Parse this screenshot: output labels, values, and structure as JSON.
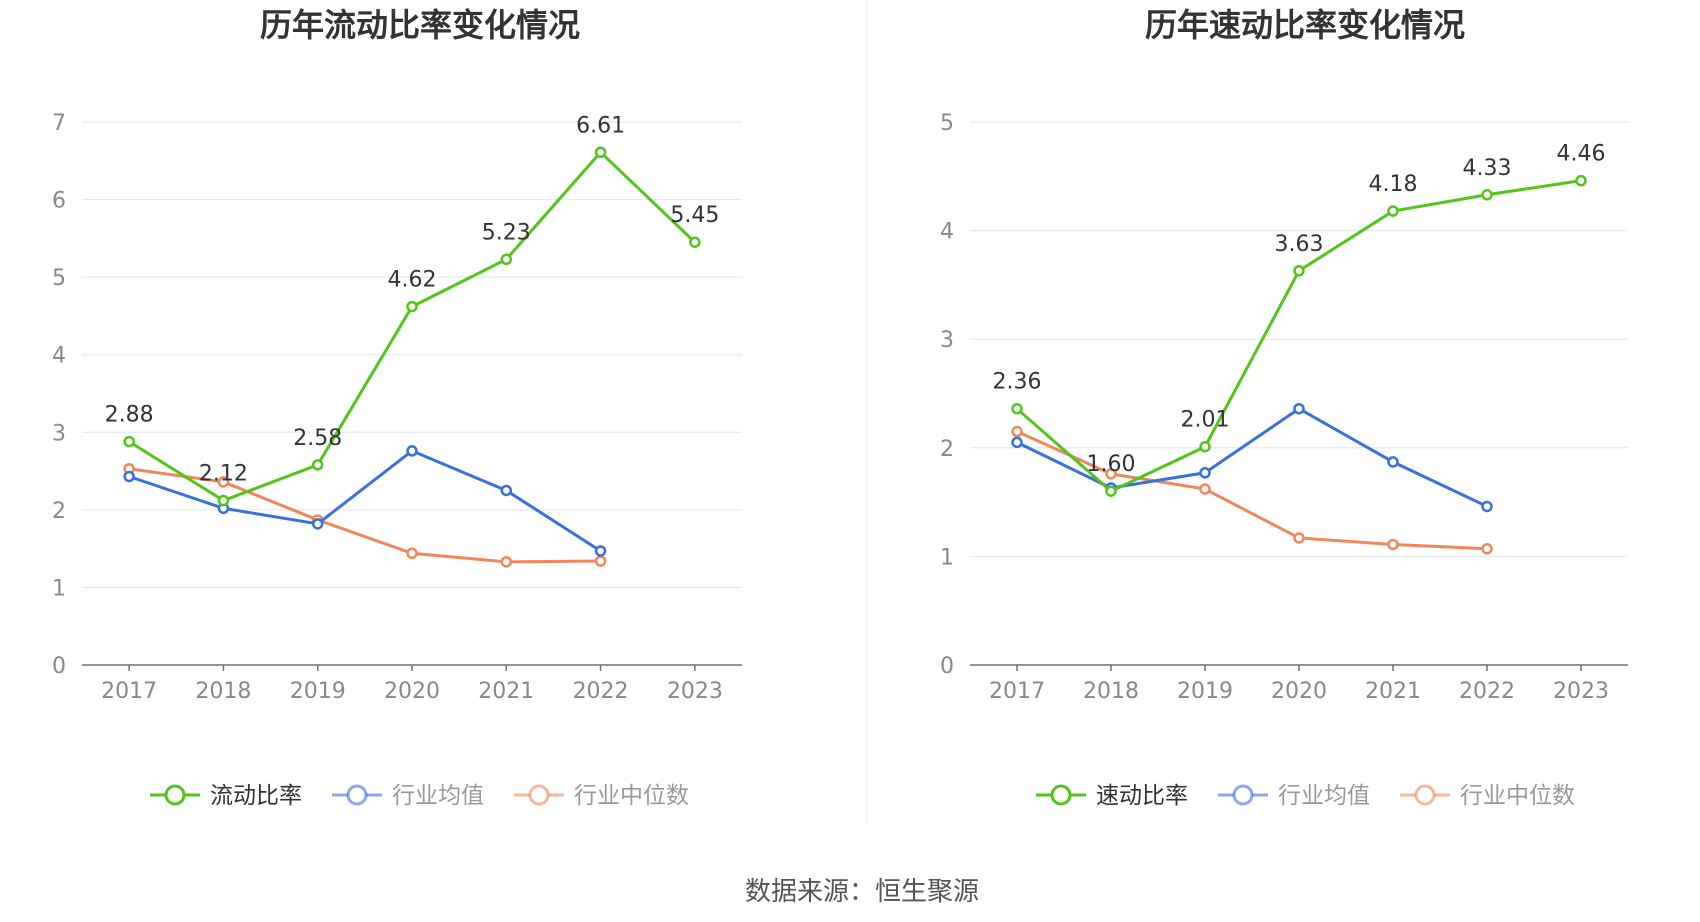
{
  "chart_data": [
    {
      "type": "line",
      "title": "历年流动比率变化情况",
      "categories": [
        "2017",
        "2018",
        "2019",
        "2020",
        "2021",
        "2022",
        "2023"
      ],
      "ylim": [
        0,
        7
      ],
      "yticks": [
        "0",
        "1",
        "2",
        "3",
        "4",
        "5",
        "6",
        "7"
      ],
      "grid": true,
      "legend_position": "bottom",
      "series": [
        {
          "name": "流动比率",
          "color": "#52c41a",
          "labeled": true,
          "values": [
            2.88,
            2.12,
            2.58,
            4.62,
            5.23,
            6.61,
            5.45
          ],
          "labels": [
            "2.88",
            "2.12",
            "2.58",
            "4.62",
            "5.23",
            "6.61",
            "5.45"
          ]
        },
        {
          "name": "行业均值",
          "color": "#3a6fe0",
          "labeled": false,
          "values": [
            2.43,
            2.02,
            1.82,
            2.76,
            2.25,
            1.47,
            null
          ]
        },
        {
          "name": "行业中位数",
          "color": "#f08659",
          "labeled": false,
          "values": [
            2.53,
            2.36,
            1.87,
            1.44,
            1.33,
            1.34,
            null
          ]
        }
      ]
    },
    {
      "type": "line",
      "title": "历年速动比率变化情况",
      "categories": [
        "2017",
        "2018",
        "2019",
        "2020",
        "2021",
        "2022",
        "2023"
      ],
      "ylim": [
        0,
        5
      ],
      "yticks": [
        "0",
        "1",
        "2",
        "3",
        "4",
        "5"
      ],
      "grid": true,
      "legend_position": "bottom",
      "series": [
        {
          "name": "速动比率",
          "color": "#52c41a",
          "labeled": true,
          "values": [
            2.36,
            1.6,
            2.01,
            3.63,
            4.18,
            4.33,
            4.46
          ],
          "labels": [
            "2.36",
            "1.60",
            "2.01",
            "3.63",
            "4.18",
            "4.33",
            "4.46"
          ]
        },
        {
          "name": "行业均值",
          "color": "#3a6fe0",
          "labeled": false,
          "values": [
            2.05,
            1.63,
            1.77,
            2.36,
            1.87,
            1.46,
            null
          ]
        },
        {
          "name": "行业中位数",
          "color": "#f08659",
          "labeled": false,
          "values": [
            2.15,
            1.76,
            1.62,
            1.17,
            1.11,
            1.07,
            null
          ]
        }
      ]
    }
  ],
  "source_text": "数据来源：恒生聚源"
}
